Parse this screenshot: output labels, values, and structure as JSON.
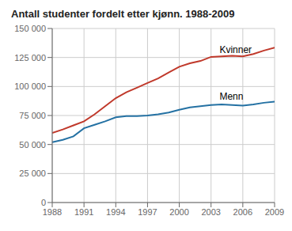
{
  "chart_data": {
    "type": "line",
    "title": "Antall studenter fordelt etter kjønn. 1988-2009",
    "x": [
      1988,
      1989,
      1990,
      1991,
      1992,
      1993,
      1994,
      1995,
      1996,
      1997,
      1998,
      1999,
      2000,
      2001,
      2002,
      2003,
      2004,
      2005,
      2006,
      2007,
      2008,
      2009
    ],
    "series": [
      {
        "name": "Kvinner",
        "color": "#c0392b",
        "values": [
          60000,
          63000,
          66500,
          70000,
          76000,
          83000,
          90000,
          95000,
          99000,
          103000,
          107000,
          112000,
          117000,
          120000,
          122000,
          125500,
          126000,
          126500,
          126000,
          128000,
          131000,
          133500
        ]
      },
      {
        "name": "Menn",
        "color": "#2471a3",
        "values": [
          52000,
          54000,
          57000,
          64000,
          67000,
          70000,
          73500,
          74500,
          74500,
          75000,
          76000,
          77500,
          80000,
          82000,
          83000,
          84000,
          84500,
          84000,
          83500,
          84500,
          86000,
          87000
        ]
      }
    ],
    "annotations": [
      {
        "text": "Kvinner",
        "x": 2003.8,
        "y": 127000
      },
      {
        "text": "Menn",
        "x": 2003.8,
        "y": 86500
      }
    ],
    "xlim": [
      1988,
      2009
    ],
    "xticks": [
      1988,
      1991,
      1994,
      1997,
      2000,
      2003,
      2006,
      2009
    ],
    "ylim": [
      0,
      150000
    ],
    "yticks": [
      0,
      {
        "value": 25000,
        "label": "25 000"
      },
      {
        "value": 50000,
        "label": "50 000"
      },
      {
        "value": 75000,
        "label": "75 000"
      },
      {
        "value": 100000,
        "label": "100 000"
      },
      {
        "value": 125000,
        "label": "125 000"
      },
      {
        "value": 150000,
        "label": "150 000"
      }
    ],
    "grid": true
  }
}
